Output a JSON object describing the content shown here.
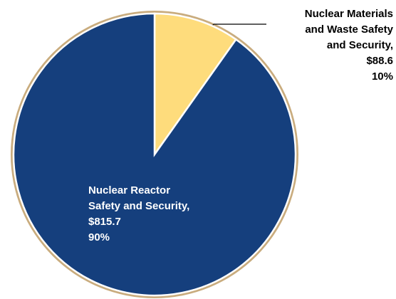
{
  "chart_data": {
    "type": "pie",
    "categories": [
      "Nuclear Materials and Waste Safety and Security,",
      "Nuclear Reactor Safety and Security,"
    ],
    "values": [
      88.6,
      815.7
    ],
    "value_labels": [
      "$88.6",
      "$815.7"
    ],
    "percentages": [
      10,
      90
    ],
    "percent_labels": [
      "10%",
      "90%"
    ],
    "colors": [
      "#fedc7c",
      "#153f7d"
    ]
  }
}
